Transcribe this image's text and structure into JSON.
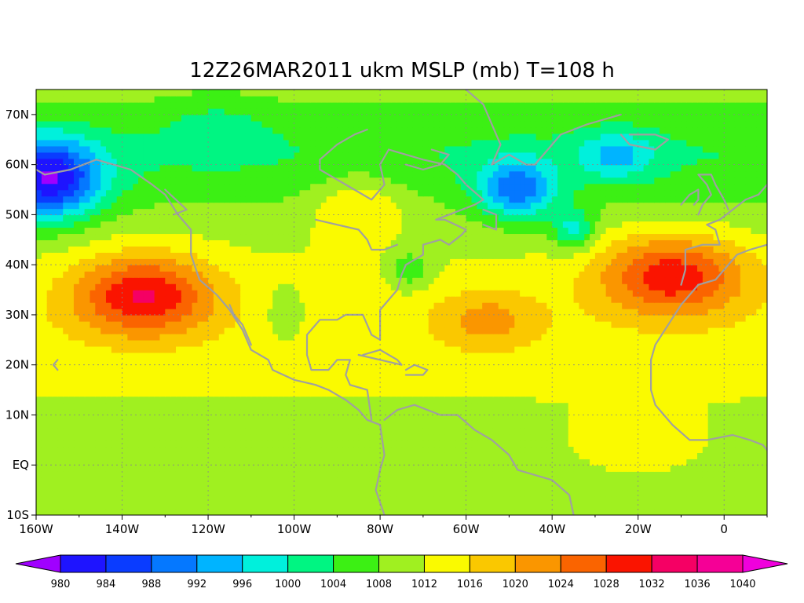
{
  "title": "12Z26MAR2011 ukm MSLP (mb) T=108 h",
  "map": {
    "lon_range": [
      -160,
      10
    ],
    "lat_range": [
      -10,
      75
    ],
    "lon_ticks": [
      {
        "value": -160,
        "label": "160W"
      },
      {
        "value": -140,
        "label": "140W"
      },
      {
        "value": -120,
        "label": "120W"
      },
      {
        "value": -100,
        "label": "100W"
      },
      {
        "value": -80,
        "label": "80W"
      },
      {
        "value": -60,
        "label": "60W"
      },
      {
        "value": -40,
        "label": "40W"
      },
      {
        "value": -20,
        "label": "20W"
      },
      {
        "value": 0,
        "label": "0"
      }
    ],
    "lat_ticks": [
      {
        "value": 70,
        "label": "70N"
      },
      {
        "value": 60,
        "label": "60N"
      },
      {
        "value": 50,
        "label": "50N"
      },
      {
        "value": 40,
        "label": "40N"
      },
      {
        "value": 30,
        "label": "30N"
      },
      {
        "value": 20,
        "label": "20N"
      },
      {
        "value": 10,
        "label": "10N"
      },
      {
        "value": 0,
        "label": "EQ"
      },
      {
        "value": -10,
        "label": "10S"
      }
    ],
    "pressure_features": [
      {
        "type": "low",
        "lon": -158,
        "lat": 57,
        "value": 986
      },
      {
        "type": "low",
        "lon": -48,
        "lat": 55,
        "value": 990
      },
      {
        "type": "low",
        "lon": -35,
        "lat": 47,
        "value": 990
      },
      {
        "type": "low",
        "lon": -25,
        "lat": 62,
        "value": 994
      },
      {
        "type": "low",
        "lon": -73,
        "lat": 39,
        "value": 1004
      },
      {
        "type": "low",
        "lon": -102,
        "lat": 30,
        "value": 1005
      },
      {
        "type": "high",
        "lon": -135,
        "lat": 34,
        "value": 1031
      },
      {
        "type": "high",
        "lon": -12,
        "lat": 38,
        "value": 1030
      },
      {
        "type": "high",
        "lon": -55,
        "lat": 29,
        "value": 1022
      },
      {
        "type": "high",
        "lon": -85,
        "lat": 52,
        "value": 1020
      }
    ]
  },
  "colorbar": {
    "levels": [
      980,
      984,
      988,
      992,
      996,
      1000,
      1004,
      1008,
      1012,
      1016,
      1020,
      1024,
      1028,
      1032,
      1036,
      1040
    ],
    "labels": [
      "980",
      "984",
      "988",
      "992",
      "996",
      "1000",
      "1004",
      "1008",
      "1012",
      "1016",
      "1020",
      "1024",
      "1028",
      "1032",
      "1036",
      "1040"
    ],
    "colors": [
      "#a000ff",
      "#1e14ff",
      "#0a3cff",
      "#0578ff",
      "#00b4ff",
      "#00f0dc",
      "#00f582",
      "#3cf014",
      "#a0f020",
      "#fafa00",
      "#fac800",
      "#fa9600",
      "#fa6400",
      "#fa1400",
      "#f50064",
      "#f50096",
      "#f000dc"
    ]
  }
}
